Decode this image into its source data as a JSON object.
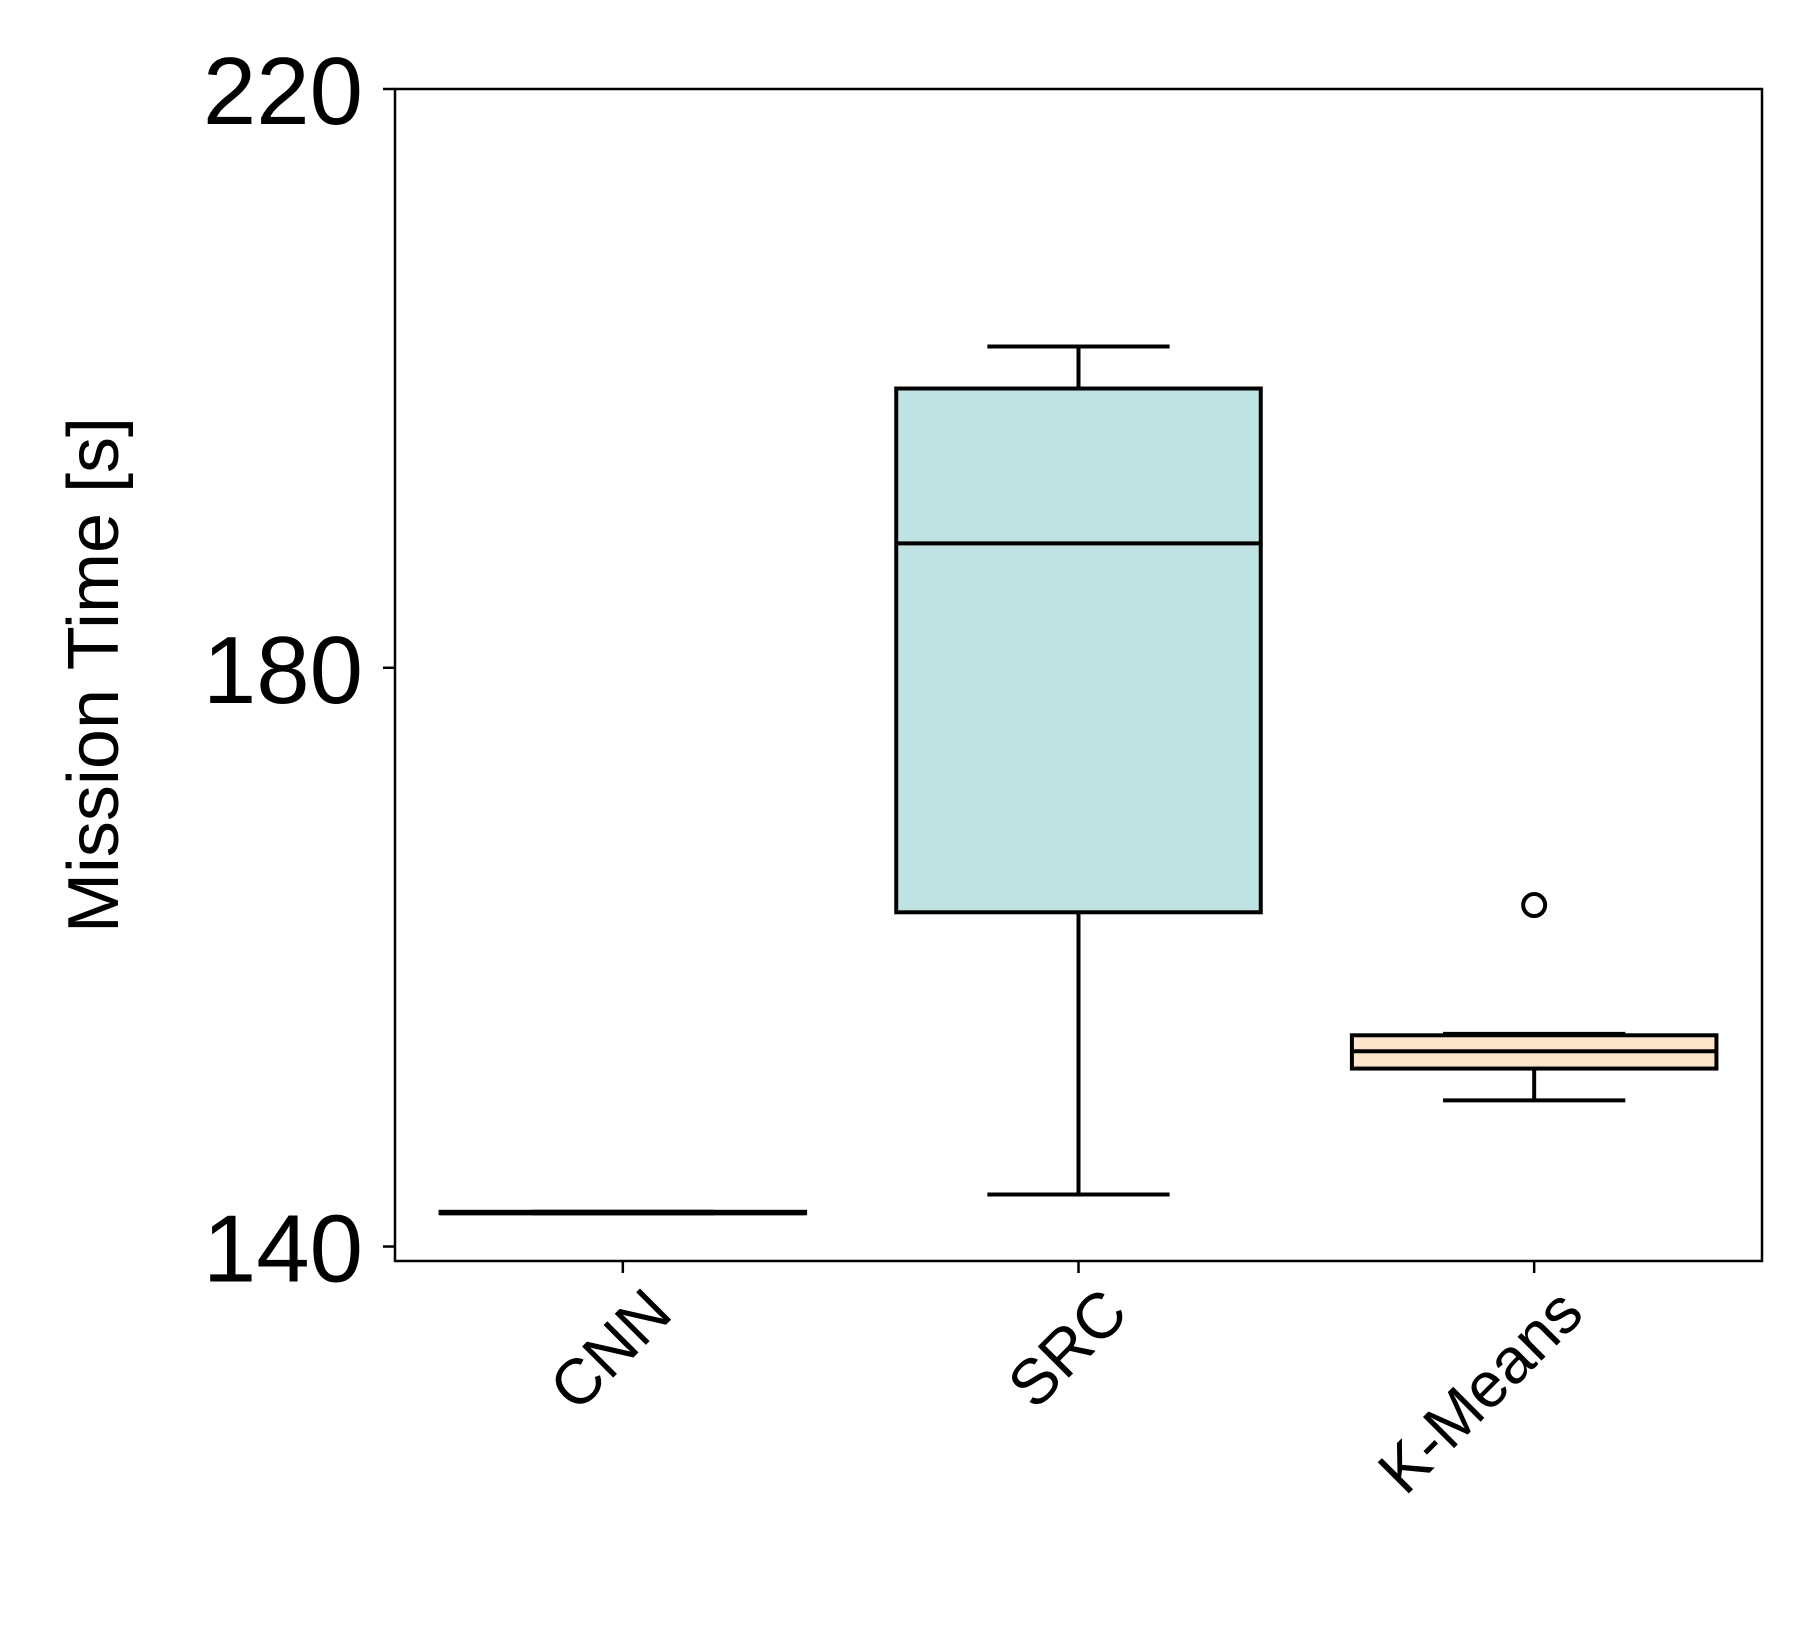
{
  "chart_data": {
    "type": "box",
    "title": "",
    "xlabel": "",
    "ylabel": "Mission Time [s]",
    "ylim": [
      139,
      220
    ],
    "yticks": [
      140,
      180,
      220
    ],
    "grid": false,
    "categories": [
      "CNN",
      "SRC",
      "K-Means"
    ],
    "boxes": [
      {
        "name": "CNN",
        "whisker_low": 142.3,
        "q1": 142.3,
        "median": 142.3,
        "q3": 142.4,
        "whisker_high": 142.4,
        "outliers": [],
        "fill": "#f5cfc2"
      },
      {
        "name": "SRC",
        "whisker_low": 143.6,
        "q1": 163.1,
        "median": 188.6,
        "q3": 199.3,
        "whisker_high": 202.2,
        "outliers": [],
        "fill": "#bfe3e3"
      },
      {
        "name": "K-Means",
        "whisker_low": 150.1,
        "q1": 152.3,
        "median": 153.5,
        "q3": 154.6,
        "whisker_high": 154.7,
        "outliers": [
          163.6
        ],
        "fill": "#fde5cc"
      }
    ]
  }
}
